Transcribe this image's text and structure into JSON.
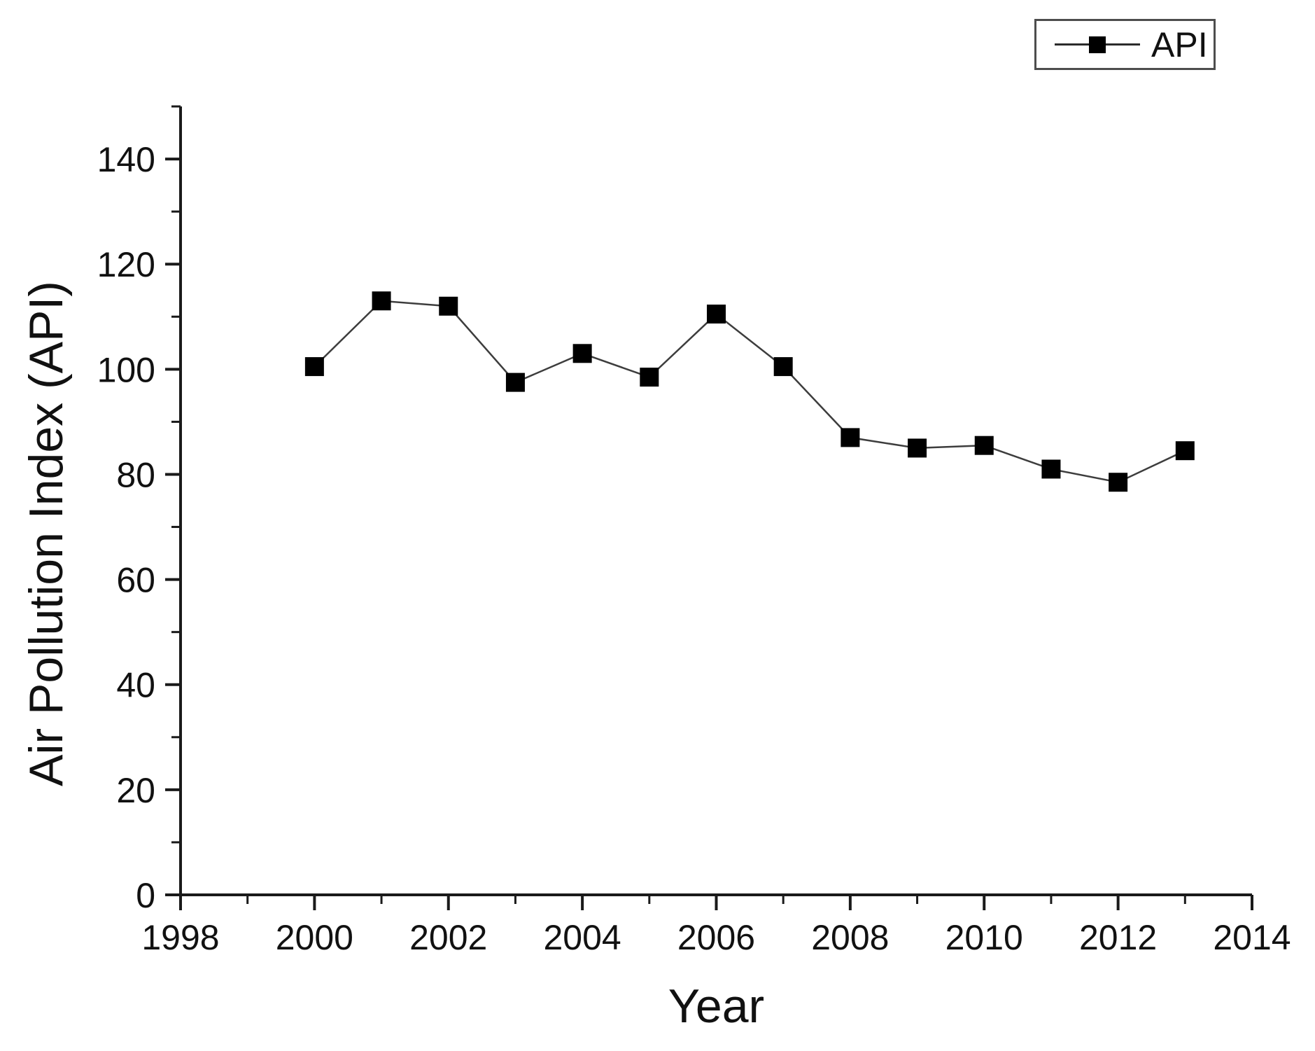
{
  "chart_data": {
    "type": "line",
    "title": "",
    "xlabel": "Year",
    "ylabel": "Air Pollution Index (API)",
    "xlim": [
      1998,
      2014
    ],
    "ylim": [
      0,
      150
    ],
    "grid": false,
    "marker": "filled-square",
    "legend": {
      "position": "top-right",
      "entries": [
        "API"
      ]
    },
    "x_major_ticks": [
      1998,
      2000,
      2002,
      2004,
      2006,
      2008,
      2010,
      2012,
      2014
    ],
    "x_minor_ticks": [
      1999,
      2001,
      2003,
      2005,
      2007,
      2009,
      2011,
      2013
    ],
    "y_major_ticks": [
      0,
      20,
      40,
      60,
      80,
      100,
      120,
      140
    ],
    "y_minor_ticks": [
      10,
      30,
      50,
      70,
      90,
      110,
      130,
      150
    ],
    "series": [
      {
        "name": "API",
        "x": [
          2000,
          2001,
          2002,
          2003,
          2004,
          2005,
          2006,
          2007,
          2008,
          2009,
          2010,
          2011,
          2012,
          2013
        ],
        "y": [
          100.5,
          113,
          112,
          97.5,
          103,
          98.5,
          110.5,
          100.5,
          87,
          85,
          85.5,
          81,
          78.5,
          84.5
        ]
      }
    ],
    "colors": {
      "line": "#3d3d3d",
      "marker": "#000000",
      "axis": "#1a1a1a",
      "text": "#111111",
      "legend_border": "#4d4d4d",
      "background": "#ffffff"
    }
  }
}
